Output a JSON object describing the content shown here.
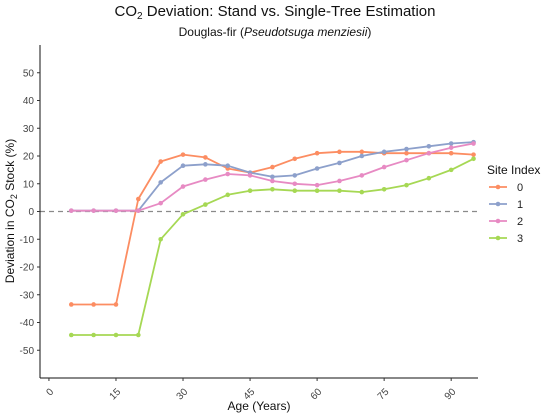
{
  "chart_data": {
    "type": "line",
    "title_main": "CO",
    "title_sub_script": "2",
    "title_rest": " Deviation: Stand vs. Single-Tree Estimation",
    "subtitle_prefix": "Douglas-fir (",
    "subtitle_italic": "Pseudotsuga menziesii",
    "subtitle_suffix": ")",
    "xlabel": "Age (Years)",
    "ylabel_main": "Deviation in CO",
    "ylabel_sub": "2",
    "ylabel_rest": " Stock (%)",
    "xlim": [
      -2,
      96
    ],
    "ylim": [
      -60,
      60
    ],
    "x_ticks": [
      0,
      15,
      30,
      45,
      60,
      75,
      90
    ],
    "y_ticks": [
      -50,
      -40,
      -30,
      -20,
      -10,
      0,
      10,
      20,
      30,
      40,
      50
    ],
    "zero_line": true,
    "legend_title": "Site Index",
    "legend_position": "right",
    "x": [
      5,
      10,
      15,
      20,
      25,
      30,
      35,
      40,
      45,
      50,
      55,
      60,
      65,
      70,
      75,
      80,
      85,
      90,
      95
    ],
    "series": [
      {
        "name": "0",
        "color": "#fc8d62",
        "values": [
          -33.5,
          -33.5,
          -33.5,
          4.5,
          18,
          20.5,
          19.5,
          15.5,
          14,
          16,
          19,
          21,
          21.5,
          21.5,
          21,
          21,
          21,
          21,
          20.5
        ]
      },
      {
        "name": "1",
        "color": "#8da0cb",
        "values": [
          0.3,
          0.3,
          0.3,
          0.3,
          10.5,
          16.5,
          17,
          16.5,
          14,
          12.5,
          13,
          15.5,
          17.5,
          20,
          21.5,
          22.5,
          23.5,
          24.5,
          25
        ]
      },
      {
        "name": "2",
        "color": "#e78ac3",
        "values": [
          0.3,
          0.3,
          0.3,
          0.3,
          3,
          9,
          11.5,
          13.5,
          13,
          11,
          10,
          9.5,
          11,
          13,
          16,
          18.5,
          21,
          23,
          24.5
        ]
      },
      {
        "name": "3",
        "color": "#a6d854",
        "values": [
          -44.5,
          -44.5,
          -44.5,
          -44.5,
          -10,
          -1,
          2.5,
          6,
          7.5,
          8,
          7.5,
          7.5,
          7.5,
          7,
          8,
          9.5,
          12,
          15,
          19
        ]
      }
    ]
  }
}
